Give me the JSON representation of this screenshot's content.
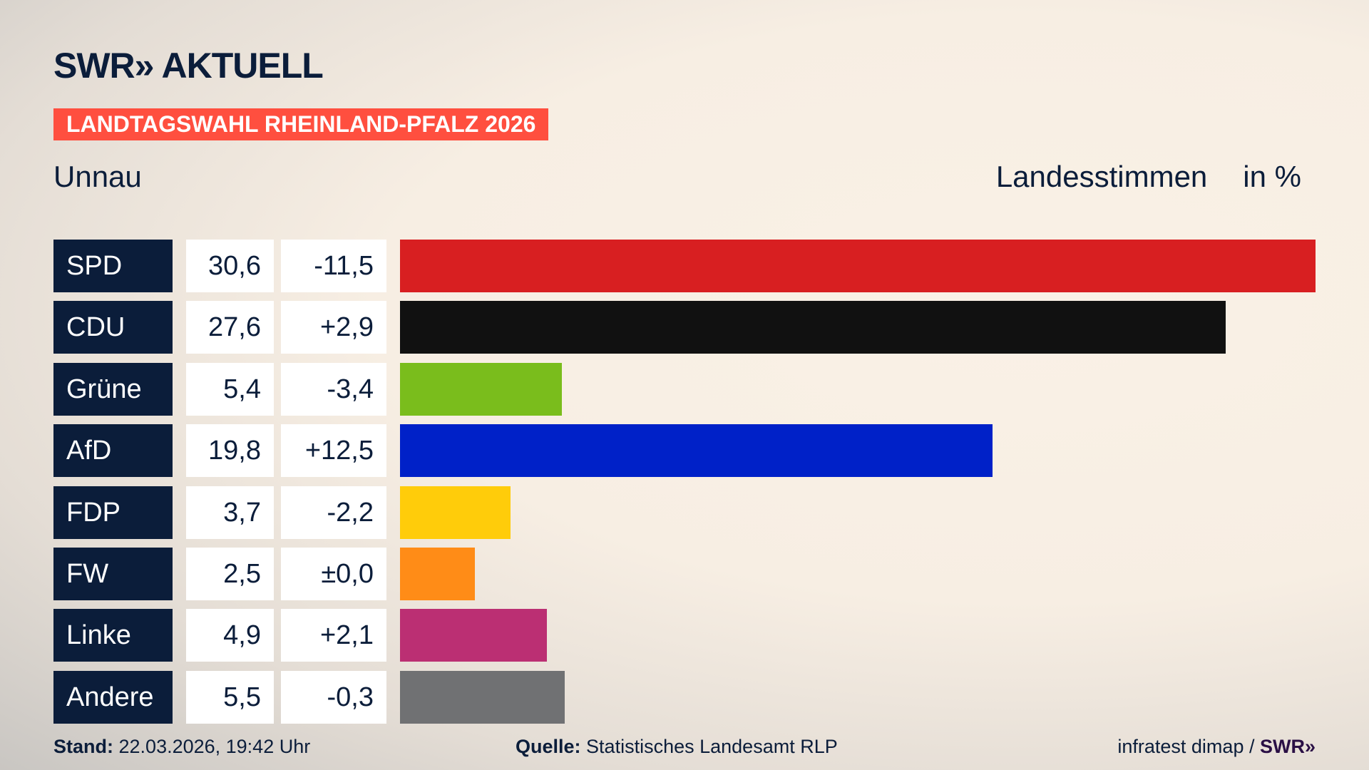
{
  "header": {
    "logo": "SWR» AKTUELL",
    "election": "LANDTAGSWAHL RHEINLAND-PFALZ 2026",
    "place": "Unnau",
    "measure": "Landesstimmen",
    "unit": "in %"
  },
  "footer": {
    "stand_label": "Stand:",
    "stand_value": "22.03.2026, 19:42 Uhr",
    "source_label": "Quelle:",
    "source_value": "Statistisches Landesamt RLP",
    "credit": "infratest dimap /",
    "credit_logo": "SWR»"
  },
  "chart_data": {
    "type": "bar",
    "orientation": "horizontal",
    "categories": [
      "SPD",
      "CDU",
      "Grüne",
      "AfD",
      "FDP",
      "FW",
      "Linke",
      "Andere"
    ],
    "values": [
      30.6,
      27.6,
      5.4,
      19.8,
      3.7,
      2.5,
      4.9,
      5.5
    ],
    "value_labels": [
      "30,6",
      "27,6",
      "5,4",
      "19,8",
      "3,7",
      "2,5",
      "4,9",
      "5,5"
    ],
    "diff_labels": [
      "-11,5",
      "+2,9",
      "-3,4",
      "+12,5",
      "-2,2",
      "±0,0",
      "+2,1",
      "-0,3"
    ],
    "colors": [
      "#d81f21",
      "#111111",
      "#7abd1c",
      "#0021c8",
      "#ffcc0a",
      "#ff8c17",
      "#bb2f73",
      "#707173"
    ],
    "ylabel": "Landesstimmen",
    "unit": "in %"
  }
}
